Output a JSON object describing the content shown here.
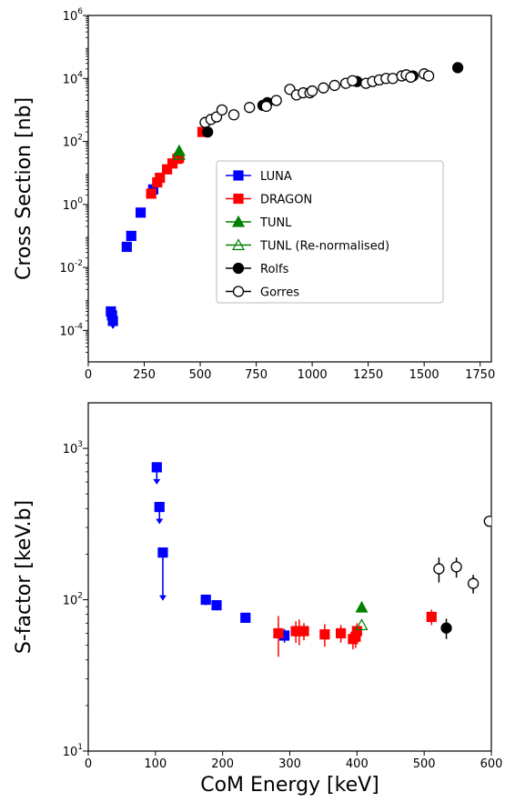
{
  "chart_data": [
    {
      "type": "scatter",
      "xscale": "linear",
      "yscale": "log",
      "xlim": [
        0,
        1800
      ],
      "ylim": [
        1e-05,
        1000000
      ],
      "xticks": [
        0,
        250,
        500,
        750,
        1000,
        1250,
        1500,
        1750
      ],
      "yticks": [
        0.0001,
        0.01,
        1,
        100,
        10000,
        1000000
      ],
      "ytick_labels": [
        {
          "base": "10",
          "exp": "-4"
        },
        {
          "base": "10",
          "exp": "-2"
        },
        {
          "base": "10",
          "exp": "0"
        },
        {
          "base": "10",
          "exp": "2"
        },
        {
          "base": "10",
          "exp": "4"
        },
        {
          "base": "10",
          "exp": "6"
        }
      ],
      "xlabel": "",
      "ylabel": "Cross Section [nb]",
      "legend_position": "center-right",
      "series": [
        {
          "name": "LUNA",
          "marker": "square",
          "color": "#0000ff",
          "filled": true,
          "points": [
            [
              101,
              0.0004,
              "ul"
            ],
            [
              106,
              0.0003,
              "ul"
            ],
            [
              110,
              0.0002,
              "ul"
            ],
            [
              172,
              0.045
            ],
            [
              192,
              0.1
            ],
            [
              234,
              0.55
            ],
            [
              290,
              3.0
            ]
          ]
        },
        {
          "name": "DRAGON",
          "marker": "square",
          "color": "#ff0000",
          "filled": true,
          "points": [
            [
              281,
              2.2
            ],
            [
              308,
              5.0
            ],
            [
              320,
              7.0
            ],
            [
              352,
              13
            ],
            [
              376,
              20
            ],
            [
              398,
              28
            ],
            [
              405,
              30
            ],
            [
              510,
              200
            ]
          ]
        },
        {
          "name": "TUNL",
          "marker": "triangle",
          "color": "#008000",
          "filled": true,
          "points": [
            [
              406,
              50
            ]
          ]
        },
        {
          "name": "TUNL (Re-normalised)",
          "marker": "triangle",
          "color": "#008000",
          "filled": false,
          "points": [
            [
              406,
              38
            ]
          ]
        },
        {
          "name": "Rolfs",
          "marker": "circle",
          "color": "#000000",
          "filled": true,
          "points": [
            [
              533,
              200
            ],
            [
              780,
              1400
            ],
            [
              800,
              1700
            ],
            [
              1200,
              8000
            ],
            [
              1450,
              12000
            ],
            [
              1650,
              22000
            ]
          ]
        },
        {
          "name": "Gorres",
          "marker": "circle",
          "color": "#000000",
          "filled": false,
          "points": [
            [
              522,
              400
            ],
            [
              548,
              500
            ],
            [
              573,
              600
            ],
            [
              597,
              1000
            ],
            [
              650,
              700
            ],
            [
              720,
              1200
            ],
            [
              795,
              1300
            ],
            [
              840,
              2000
            ],
            [
              900,
              4500
            ],
            [
              930,
              3000
            ],
            [
              960,
              3500
            ],
            [
              990,
              3500
            ],
            [
              1000,
              4000
            ],
            [
              1050,
              5000
            ],
            [
              1100,
              6000
            ],
            [
              1150,
              7000
            ],
            [
              1180,
              8500
            ],
            [
              1240,
              7000
            ],
            [
              1270,
              8000
            ],
            [
              1300,
              9000
            ],
            [
              1330,
              10000
            ],
            [
              1360,
              10000
            ],
            [
              1400,
              12000
            ],
            [
              1420,
              13000
            ],
            [
              1440,
              11000
            ],
            [
              1500,
              14000
            ],
            [
              1520,
              12000
            ]
          ]
        }
      ]
    },
    {
      "type": "scatter",
      "xscale": "linear",
      "yscale": "log",
      "xlim": [
        0,
        600
      ],
      "ylim": [
        10,
        2000
      ],
      "xticks": [
        0,
        100,
        200,
        300,
        400,
        500,
        600
      ],
      "yticks": [
        10,
        100,
        1000
      ],
      "ytick_labels": [
        {
          "base": "10",
          "exp": "1"
        },
        {
          "base": "10",
          "exp": "2"
        },
        {
          "base": "10",
          "exp": "3"
        }
      ],
      "xlabel": "CoM Energy [keV]",
      "ylabel": "S-factor [keV.b]",
      "series": [
        {
          "name": "LUNA",
          "marker": "square",
          "color": "#0000ff",
          "filled": true,
          "points": [
            [
              102,
              750,
              "ul"
            ],
            [
              106,
              410,
              "ul"
            ],
            [
              111,
              205,
              "ul"
            ],
            [
              175,
              100,
              8
            ],
            [
              191,
              92,
              7
            ],
            [
              234,
              76,
              5
            ],
            [
              292,
              58,
              6
            ]
          ]
        },
        {
          "name": "DRAGON",
          "marker": "square",
          "color": "#ff0000",
          "filled": true,
          "points": [
            [
              283,
              60,
              18
            ],
            [
              309,
              62,
              10
            ],
            [
              314,
              62,
              12
            ],
            [
              321,
              62,
              8
            ],
            [
              352,
              59,
              10
            ],
            [
              376,
              60,
              8
            ],
            [
              394,
              55,
              8
            ],
            [
              398,
              57,
              9
            ],
            [
              400,
              62,
              8
            ],
            [
              511,
              77,
              9
            ]
          ]
        },
        {
          "name": "TUNL",
          "marker": "triangle",
          "color": "#008000",
          "filled": true,
          "points": [
            [
              407,
              89,
              0
            ]
          ]
        },
        {
          "name": "TUNL (Re-normalised)",
          "marker": "triangle",
          "color": "#008000",
          "filled": false,
          "points": [
            [
              407,
              68,
              0
            ]
          ]
        },
        {
          "name": "Rolfs",
          "marker": "circle",
          "color": "#000000",
          "filled": true,
          "points": [
            [
              533,
              65,
              10
            ]
          ]
        },
        {
          "name": "Gorres",
          "marker": "circle",
          "color": "#000000",
          "filled": false,
          "points": [
            [
              522,
              160,
              30
            ],
            [
              548,
              165,
              25
            ],
            [
              573,
              128,
              18
            ],
            [
              597,
              330,
              20
            ]
          ]
        }
      ]
    }
  ]
}
